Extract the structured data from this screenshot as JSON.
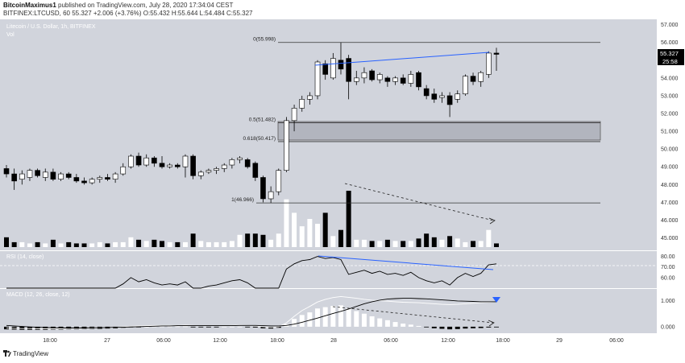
{
  "header": {
    "author": "BitcoinMaximus1",
    "published_text": "published on TradingView.com, July 28, 2020 17:34:04 CEST",
    "symbol_line": "BITFINEX:LTCUSD, 60",
    "price": "55.327",
    "change": "+2.006 (+3.76%)",
    "o_label": "O:",
    "o_value": "55.432",
    "h_label": "H:",
    "h_value": "55.644",
    "l_label": "L:",
    "l_value": "54.484",
    "c_label": "C:",
    "c_value": "55.327"
  },
  "legend": {
    "title": "Litecoin / U.S. Dollar, 1h, BITFINEX",
    "vol_label": "Vol"
  },
  "brand": {
    "name": "TradingView"
  },
  "colors": {
    "background": "#d1d4dc",
    "up_body": "#ffffff",
    "down_body": "#000000",
    "wick": "#000000",
    "blue_line": "#2962ff",
    "panel_bg": "#ffffff",
    "tag_bg": "#000000"
  },
  "chart_data": [
    {
      "type": "candlestick",
      "title": "Litecoin / U.S. Dollar, 1h, BITFINEX",
      "ylim": [
        44.3,
        57.3
      ],
      "y_ticks": [
        "57.000",
        "56.000",
        "55.000",
        "54.000",
        "53.000",
        "52.000",
        "51.000",
        "50.000",
        "49.000",
        "48.000",
        "47.000",
        "46.000",
        "45.000"
      ],
      "x_tick_labels": [
        "18:00",
        "27",
        "06:00",
        "12:00",
        "18:00",
        "28",
        "06:00",
        "12:00",
        "18:00",
        "29",
        "06:00"
      ],
      "price_tag": "55.327",
      "countdown_tag": "25:58",
      "candles": [
        {
          "o": 48.9,
          "h": 49.1,
          "l": 48.4,
          "c": 48.6
        },
        {
          "o": 48.6,
          "h": 48.9,
          "l": 47.7,
          "c": 48.2
        },
        {
          "o": 48.3,
          "h": 48.8,
          "l": 48.0,
          "c": 48.6
        },
        {
          "o": 48.4,
          "h": 48.9,
          "l": 48.2,
          "c": 48.8
        },
        {
          "o": 48.8,
          "h": 48.9,
          "l": 48.4,
          "c": 48.5
        },
        {
          "o": 48.4,
          "h": 48.9,
          "l": 48.2,
          "c": 48.7
        },
        {
          "o": 48.7,
          "h": 48.9,
          "l": 48.2,
          "c": 48.3
        },
        {
          "o": 48.3,
          "h": 48.7,
          "l": 48.2,
          "c": 48.6
        },
        {
          "o": 48.6,
          "h": 48.7,
          "l": 48.3,
          "c": 48.4
        },
        {
          "o": 48.4,
          "h": 48.6,
          "l": 48.1,
          "c": 48.2
        },
        {
          "o": 48.2,
          "h": 48.4,
          "l": 48.0,
          "c": 48.1
        },
        {
          "o": 48.1,
          "h": 48.4,
          "l": 48.0,
          "c": 48.3
        },
        {
          "o": 48.3,
          "h": 48.5,
          "l": 48.1,
          "c": 48.4
        },
        {
          "o": 48.4,
          "h": 48.6,
          "l": 48.2,
          "c": 48.3
        },
        {
          "o": 48.3,
          "h": 48.7,
          "l": 48.1,
          "c": 48.6
        },
        {
          "o": 48.6,
          "h": 49.2,
          "l": 48.5,
          "c": 49.0
        },
        {
          "o": 49.0,
          "h": 49.7,
          "l": 48.9,
          "c": 49.6
        },
        {
          "o": 49.6,
          "h": 49.8,
          "l": 49.0,
          "c": 49.1
        },
        {
          "o": 49.1,
          "h": 49.7,
          "l": 49.0,
          "c": 49.5
        },
        {
          "o": 49.5,
          "h": 49.6,
          "l": 49.0,
          "c": 49.2
        },
        {
          "o": 49.2,
          "h": 49.6,
          "l": 48.9,
          "c": 49.0
        },
        {
          "o": 49.0,
          "h": 49.2,
          "l": 48.9,
          "c": 49.1
        },
        {
          "o": 49.1,
          "h": 49.2,
          "l": 48.9,
          "c": 49.0
        },
        {
          "o": 49.0,
          "h": 49.7,
          "l": 48.4,
          "c": 49.6
        },
        {
          "o": 49.6,
          "h": 49.7,
          "l": 48.3,
          "c": 48.5
        },
        {
          "o": 48.5,
          "h": 48.8,
          "l": 48.3,
          "c": 48.7
        },
        {
          "o": 48.7,
          "h": 48.9,
          "l": 48.6,
          "c": 48.8
        },
        {
          "o": 48.8,
          "h": 49.0,
          "l": 48.6,
          "c": 48.9
        },
        {
          "o": 48.9,
          "h": 49.2,
          "l": 48.7,
          "c": 49.1
        },
        {
          "o": 49.1,
          "h": 49.5,
          "l": 48.9,
          "c": 49.4
        },
        {
          "o": 49.4,
          "h": 49.6,
          "l": 49.2,
          "c": 49.5
        },
        {
          "o": 49.4,
          "h": 49.5,
          "l": 48.9,
          "c": 49.0
        },
        {
          "o": 49.2,
          "h": 49.3,
          "l": 48.2,
          "c": 48.4
        },
        {
          "o": 48.4,
          "h": 48.5,
          "l": 47.0,
          "c": 47.2
        },
        {
          "o": 47.2,
          "h": 47.9,
          "l": 46.97,
          "c": 47.6
        },
        {
          "o": 47.6,
          "h": 48.9,
          "l": 47.4,
          "c": 48.8
        },
        {
          "o": 48.8,
          "h": 51.8,
          "l": 48.7,
          "c": 51.6
        },
        {
          "o": 51.6,
          "h": 52.5,
          "l": 51.0,
          "c": 52.3
        },
        {
          "o": 52.3,
          "h": 53.0,
          "l": 52.1,
          "c": 52.8
        },
        {
          "o": 52.8,
          "h": 53.2,
          "l": 52.5,
          "c": 53.0
        },
        {
          "o": 53.0,
          "h": 55.0,
          "l": 52.8,
          "c": 54.9
        },
        {
          "o": 54.8,
          "h": 55.0,
          "l": 53.9,
          "c": 54.2
        },
        {
          "o": 54.0,
          "h": 55.4,
          "l": 53.9,
          "c": 55.1
        },
        {
          "o": 55.0,
          "h": 56.0,
          "l": 54.2,
          "c": 54.5
        },
        {
          "o": 55.1,
          "h": 55.3,
          "l": 52.8,
          "c": 53.8
        },
        {
          "o": 53.8,
          "h": 54.4,
          "l": 53.6,
          "c": 54.0
        },
        {
          "o": 54.0,
          "h": 54.6,
          "l": 53.7,
          "c": 54.3
        },
        {
          "o": 54.4,
          "h": 54.5,
          "l": 53.8,
          "c": 53.9
        },
        {
          "o": 53.9,
          "h": 54.3,
          "l": 53.7,
          "c": 54.2
        },
        {
          "o": 54.0,
          "h": 54.1,
          "l": 53.5,
          "c": 53.8
        },
        {
          "o": 53.8,
          "h": 54.1,
          "l": 53.6,
          "c": 54.0
        },
        {
          "o": 54.0,
          "h": 54.2,
          "l": 53.6,
          "c": 53.7
        },
        {
          "o": 53.7,
          "h": 54.4,
          "l": 53.5,
          "c": 54.2
        },
        {
          "o": 54.3,
          "h": 54.4,
          "l": 53.3,
          "c": 53.5
        },
        {
          "o": 53.4,
          "h": 53.6,
          "l": 52.8,
          "c": 53.0
        },
        {
          "o": 53.1,
          "h": 53.4,
          "l": 52.6,
          "c": 52.8
        },
        {
          "o": 52.9,
          "h": 53.2,
          "l": 52.6,
          "c": 53.0
        },
        {
          "o": 53.0,
          "h": 53.2,
          "l": 51.8,
          "c": 52.5
        },
        {
          "o": 52.8,
          "h": 53.3,
          "l": 52.6,
          "c": 53.1
        },
        {
          "o": 53.1,
          "h": 54.2,
          "l": 53.0,
          "c": 54.1
        },
        {
          "o": 54.1,
          "h": 54.3,
          "l": 53.6,
          "c": 53.8
        },
        {
          "o": 53.8,
          "h": 54.4,
          "l": 53.5,
          "c": 54.3
        },
        {
          "o": 54.2,
          "h": 55.5,
          "l": 54.0,
          "c": 55.4
        },
        {
          "o": 55.4,
          "h": 55.7,
          "l": 54.4,
          "c": 55.33
        }
      ],
      "volume": [
        8,
        4,
        4,
        3,
        4,
        3,
        6,
        3,
        4,
        3,
        3,
        3,
        4,
        3,
        4,
        4,
        8,
        6,
        5,
        6,
        5,
        4,
        4,
        4,
        11,
        5,
        4,
        4,
        4,
        5,
        10,
        11,
        11,
        10,
        6,
        11,
        39,
        28,
        17,
        23,
        19,
        28,
        9,
        14,
        46,
        6,
        6,
        5,
        5,
        6,
        5,
        5,
        5,
        7,
        11,
        8,
        6,
        9,
        7,
        4,
        5,
        5,
        14,
        3
      ],
      "fibonacci": [
        {
          "label": "0(55.998)",
          "level": 55.998
        },
        {
          "label": "0.5(51.482)",
          "level": 51.482
        },
        {
          "label": "0.618(50.417)",
          "level": 50.417
        },
        {
          "label": "1(46.966)",
          "level": 46.966
        }
      ]
    },
    {
      "type": "line",
      "title": "RSI (14, close)",
      "ylim": [
        50,
        85
      ],
      "y_ticks": [
        "80.00",
        "70.00",
        "60.00"
      ],
      "y": [
        45,
        42,
        44,
        46,
        44,
        46,
        44,
        47,
        46,
        44,
        43,
        46,
        47,
        46,
        48,
        54,
        60,
        56,
        58,
        55,
        53,
        54,
        53,
        56,
        48,
        50,
        52,
        53,
        55,
        57,
        58,
        55,
        50,
        38,
        42,
        50,
        68,
        73,
        76,
        77,
        80,
        78,
        79,
        77,
        63,
        65,
        67,
        64,
        66,
        63,
        64,
        62,
        65,
        60,
        57,
        55,
        57,
        53,
        60,
        64,
        61,
        64,
        72,
        73
      ]
    },
    {
      "type": "line",
      "title": "MACD (12, 26, close, 12)",
      "ylim": [
        -0.25,
        1.45
      ],
      "y_ticks": [
        "1.000",
        "0.000"
      ],
      "hist": [
        -0.1,
        -0.11,
        -0.12,
        -0.12,
        -0.12,
        -0.12,
        -0.11,
        -0.11,
        -0.1,
        -0.1,
        -0.09,
        -0.08,
        -0.08,
        -0.07,
        -0.06,
        -0.04,
        -0.02,
        -0.01,
        0.0,
        0.01,
        0.01,
        0.01,
        0.01,
        0.01,
        -0.01,
        -0.01,
        -0.01,
        -0.01,
        0.0,
        0.0,
        0.0,
        -0.01,
        -0.03,
        -0.06,
        -0.07,
        -0.04,
        0.1,
        0.3,
        0.45,
        0.55,
        0.7,
        0.75,
        0.8,
        0.82,
        0.7,
        0.6,
        0.5,
        0.4,
        0.32,
        0.25,
        0.18,
        0.12,
        0.08,
        0.03,
        -0.02,
        -0.06,
        -0.08,
        -0.1,
        -0.09,
        -0.07,
        -0.06,
        -0.05,
        -0.03,
        -0.02
      ],
      "macd": [
        -0.05,
        -0.06,
        -0.07,
        -0.07,
        -0.08,
        -0.08,
        -0.08,
        -0.08,
        -0.07,
        -0.07,
        -0.06,
        -0.05,
        -0.04,
        -0.03,
        -0.02,
        0.0,
        0.02,
        0.03,
        0.04,
        0.05,
        0.05,
        0.05,
        0.05,
        0.06,
        0.05,
        0.04,
        0.04,
        0.04,
        0.04,
        0.05,
        0.06,
        0.05,
        0.03,
        0.0,
        -0.02,
        0.0,
        0.15,
        0.4,
        0.62,
        0.78,
        0.95,
        1.05,
        1.12,
        1.16,
        1.13,
        1.09,
        1.05,
        1.02,
        1.0,
        0.98,
        0.96,
        0.94,
        0.93,
        0.92,
        0.9,
        0.88,
        0.86,
        0.85,
        0.86,
        0.88,
        0.9,
        0.92,
        0.94,
        0.96
      ],
      "signal": [
        0.05,
        0.03,
        0.01,
        -0.01,
        -0.02,
        -0.03,
        -0.04,
        -0.05,
        -0.05,
        -0.05,
        -0.05,
        -0.04,
        -0.04,
        -0.03,
        -0.02,
        -0.02,
        -0.01,
        0.0,
        0.01,
        0.02,
        0.03,
        0.03,
        0.04,
        0.04,
        0.04,
        0.04,
        0.04,
        0.04,
        0.04,
        0.04,
        0.05,
        0.05,
        0.05,
        0.04,
        0.03,
        0.03,
        0.05,
        0.1,
        0.17,
        0.25,
        0.33,
        0.42,
        0.51,
        0.59,
        0.68,
        0.78,
        0.88,
        0.96,
        1.02,
        1.06,
        1.08,
        1.09,
        1.09,
        1.08,
        1.07,
        1.05,
        1.03,
        1.01,
        0.99,
        0.98,
        0.97,
        0.96,
        0.96,
        0.96
      ]
    }
  ]
}
